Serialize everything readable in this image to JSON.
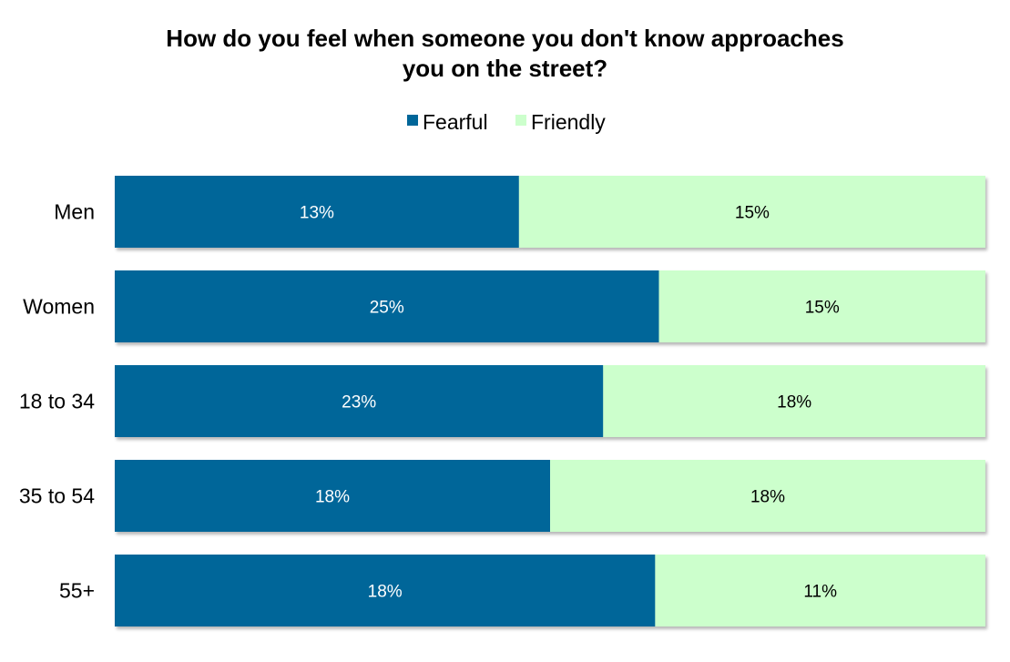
{
  "chart_data": {
    "type": "bar",
    "orientation": "horizontal",
    "stacked": true,
    "normalized": true,
    "title_lines": [
      "How do you feel when someone you don't know approaches",
      "you on the street?"
    ],
    "categories": [
      "Men",
      "Women",
      "18 to 34",
      "35 to 54",
      "55+"
    ],
    "series": [
      {
        "name": "Fearful",
        "color": "#006699",
        "label_color": "#ffffff",
        "values": [
          13,
          25,
          23,
          18,
          18
        ],
        "labels": [
          "13%",
          "25%",
          "23%",
          "18%",
          "18%"
        ]
      },
      {
        "name": "Friendly",
        "color": "#ccffcc",
        "label_color": "#000000",
        "values": [
          15,
          15,
          18,
          18,
          11
        ],
        "labels": [
          "15%",
          "15%",
          "18%",
          "18%",
          "11%"
        ]
      }
    ],
    "xlabel": "",
    "ylabel": "",
    "grid": false,
    "legend_position": "top"
  }
}
